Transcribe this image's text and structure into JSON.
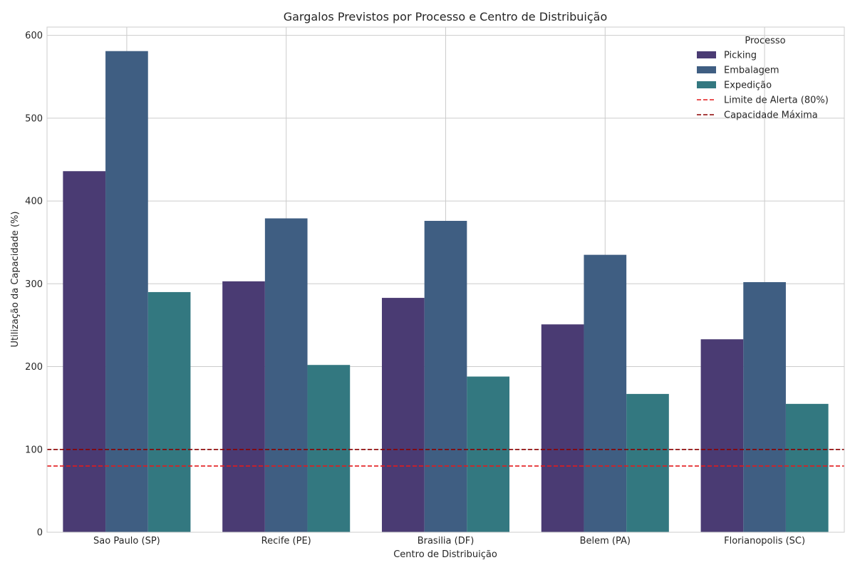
{
  "chart_data": {
    "type": "bar",
    "title": "Gargalos Previstos por Processo e Centro de Distribuição",
    "xlabel": "Centro de Distribuição",
    "ylabel": "Utilização da Capacidade (%)",
    "ylim": [
      0,
      610
    ],
    "yticks": [
      0,
      100,
      200,
      300,
      400,
      500,
      600
    ],
    "grid": true,
    "legend_position": "top-right",
    "legend_title": "Processo",
    "categories": [
      "Sao Paulo (SP)",
      "Recife (PE)",
      "Brasilia (DF)",
      "Belem (PA)",
      "Florianopolis (SC)"
    ],
    "series": [
      {
        "name": "Picking",
        "color": "#4a3b73",
        "values": [
          436,
          303,
          283,
          251,
          233
        ]
      },
      {
        "name": "Embalagem",
        "color": "#3f5e82",
        "values": [
          581,
          379,
          376,
          335,
          302
        ]
      },
      {
        "name": "Expedição",
        "color": "#337880",
        "values": [
          290,
          202,
          188,
          167,
          155
        ]
      }
    ],
    "reference_lines": [
      {
        "name": "Limite de Alerta (80%)",
        "value": 80,
        "color": "#e31a1c",
        "style": "dashed"
      },
      {
        "name": "Capacidade Máxima",
        "value": 100,
        "color": "#8b0000",
        "style": "dashed"
      }
    ]
  }
}
